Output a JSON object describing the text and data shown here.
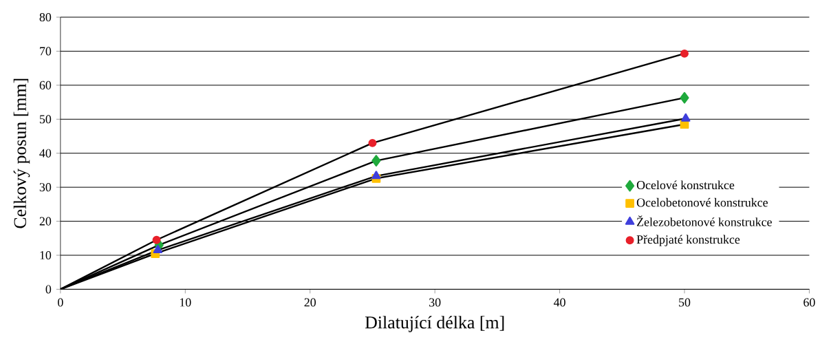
{
  "chart_data": {
    "type": "line",
    "xlabel": "Dilatující délka [m]",
    "ylabel": "Celkový posun [mm]",
    "xlim": [
      0,
      60
    ],
    "ylim": [
      0,
      80
    ],
    "xticks": [
      0,
      10,
      20,
      30,
      40,
      50,
      60
    ],
    "yticks": [
      0,
      10,
      20,
      30,
      40,
      50,
      60,
      70,
      80
    ],
    "grid": "y",
    "legend": "right",
    "series": [
      {
        "name": "Ocelové konstrukce",
        "color": "#1faa3c",
        "marker": "diamond",
        "x": [
          0,
          7.9,
          25.3,
          50
        ],
        "values": [
          0,
          13,
          37.8,
          56.3
        ]
      },
      {
        "name": "Ocelobetonové konstrukce",
        "color": "#ffc000",
        "marker": "square",
        "x": [
          0,
          7.6,
          25.3,
          50
        ],
        "values": [
          0,
          10.5,
          32.6,
          48.5
        ]
      },
      {
        "name": "Železobetonové konstrukce",
        "color": "#3f3fdc",
        "marker": "triangle",
        "x": [
          0,
          7.8,
          25.3,
          50.1
        ],
        "values": [
          0,
          11.5,
          33.3,
          50.2
        ]
      },
      {
        "name": "Předpjaté konstrukce",
        "color": "#e8202a",
        "marker": "circle",
        "x": [
          0,
          7.7,
          25,
          50
        ],
        "values": [
          0,
          14.5,
          43,
          69.3
        ]
      }
    ]
  }
}
